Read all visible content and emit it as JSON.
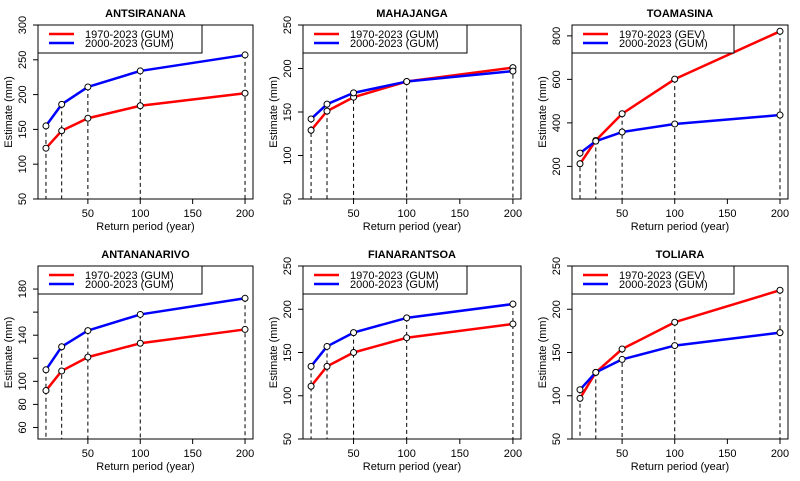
{
  "chart_data": [
    {
      "type": "line",
      "title": "ANTSIRANANA",
      "xlabel": "Return period (year)",
      "ylabel": "Estimate (mm)",
      "x": [
        10,
        25,
        50,
        100,
        200
      ],
      "xlim": [
        2.4,
        207.6
      ],
      "xticks": [
        50,
        100,
        150,
        200
      ],
      "ylim": [
        50,
        300
      ],
      "yticks": [
        50,
        100,
        150,
        200,
        250,
        300
      ],
      "ytick_labels": [
        "50",
        "100",
        "150",
        "200",
        "250",
        "300"
      ],
      "grid": false,
      "legend_position": "top-left",
      "series": [
        {
          "name": "1970-2023 (GUM)",
          "color": "#ff0000",
          "values": [
            123,
            148,
            166,
            184,
            202
          ]
        },
        {
          "name": "2000-2023 (GUM)",
          "color": "#0000ff",
          "values": [
            155,
            186,
            211,
            234,
            257
          ]
        }
      ]
    },
    {
      "type": "line",
      "title": "MAHAJANGA",
      "xlabel": "Return period (year)",
      "ylabel": "Estimate (mm)",
      "x": [
        10,
        25,
        50,
        100,
        200
      ],
      "xlim": [
        2.4,
        207.6
      ],
      "xticks": [
        50,
        100,
        150,
        200
      ],
      "ylim": [
        50,
        250
      ],
      "yticks": [
        50,
        100,
        150,
        200,
        250
      ],
      "ytick_labels": [
        "50",
        "100",
        "150",
        "200",
        "250"
      ],
      "grid": false,
      "legend_position": "top-left",
      "series": [
        {
          "name": "1970-2023 (GUM)",
          "color": "#ff0000",
          "values": [
            129,
            151,
            167,
            185,
            201
          ]
        },
        {
          "name": "2000-2023 (GUM)",
          "color": "#0000ff",
          "values": [
            142,
            159,
            172,
            185,
            197
          ]
        }
      ]
    },
    {
      "type": "line",
      "title": "TOAMASINA",
      "xlabel": "Return period (year)",
      "ylabel": "Estimate (mm)",
      "x": [
        10,
        25,
        50,
        100,
        200
      ],
      "xlim": [
        2.4,
        207.6
      ],
      "xticks": [
        50,
        100,
        150,
        200
      ],
      "ylim": [
        50,
        850
      ],
      "yticks": [
        200,
        400,
        600,
        800
      ],
      "ytick_labels": [
        "200",
        "400",
        "600",
        "800"
      ],
      "grid": false,
      "legend_position": "top-left",
      "series": [
        {
          "name": "1970-2023 (GEV)",
          "color": "#ff0000",
          "values": [
            212,
            319,
            442,
            601,
            821
          ]
        },
        {
          "name": "2000-2023 (GUM)",
          "color": "#0000ff",
          "values": [
            261,
            316,
            358,
            395,
            436
          ]
        }
      ]
    },
    {
      "type": "line",
      "title": "ANTANANARIVO",
      "xlabel": "Return period (year)",
      "ylabel": "Estimate (mm)",
      "x": [
        10,
        25,
        50,
        100,
        200
      ],
      "xlim": [
        2.4,
        207.6
      ],
      "xticks": [
        50,
        100,
        150,
        200
      ],
      "ylim": [
        50,
        200
      ],
      "yticks": [
        60,
        80,
        100,
        120,
        140,
        160,
        180
      ],
      "ytick_labels": [
        "60",
        "80",
        "100",
        "",
        "140",
        "",
        "180"
      ],
      "grid": false,
      "legend_position": "top-left",
      "series": [
        {
          "name": "1970-2023 (GUM)",
          "color": "#ff0000",
          "values": [
            92,
            109,
            121,
            133,
            145
          ]
        },
        {
          "name": "2000-2023 (GUM)",
          "color": "#0000ff",
          "values": [
            110,
            130,
            144,
            158,
            172
          ]
        }
      ]
    },
    {
      "type": "line",
      "title": "FIANARANTSOA",
      "xlabel": "Return period (year)",
      "ylabel": "Estimate (mm)",
      "x": [
        10,
        25,
        50,
        100,
        200
      ],
      "xlim": [
        2.4,
        207.6
      ],
      "xticks": [
        50,
        100,
        150,
        200
      ],
      "ylim": [
        50,
        250
      ],
      "yticks": [
        50,
        100,
        150,
        200,
        250
      ],
      "ytick_labels": [
        "50",
        "100",
        "150",
        "200",
        "250"
      ],
      "grid": false,
      "legend_position": "top-left",
      "series": [
        {
          "name": "1970-2023 (GUM)",
          "color": "#ff0000",
          "values": [
            111,
            134,
            150,
            167,
            183
          ]
        },
        {
          "name": "2000-2023 (GUM)",
          "color": "#0000ff",
          "values": [
            134,
            157,
            173,
            190,
            206
          ]
        }
      ]
    },
    {
      "type": "line",
      "title": "TOLIARA",
      "xlabel": "Return period (year)",
      "ylabel": "Estimate (mm)",
      "x": [
        10,
        25,
        50,
        100,
        200
      ],
      "xlim": [
        2.4,
        207.6
      ],
      "xticks": [
        50,
        100,
        150,
        200
      ],
      "ylim": [
        50,
        250
      ],
      "yticks": [
        50,
        100,
        150,
        200,
        250
      ],
      "ytick_labels": [
        "50",
        "100",
        "150",
        "200",
        "250"
      ],
      "grid": false,
      "legend_position": "top-left",
      "series": [
        {
          "name": "1970-2023 (GEV)",
          "color": "#ff0000",
          "values": [
            97,
            127,
            154,
            185,
            222
          ]
        },
        {
          "name": "2000-2023 (GUM)",
          "color": "#0000ff",
          "values": [
            107,
            127,
            142,
            158,
            173
          ]
        }
      ]
    }
  ]
}
